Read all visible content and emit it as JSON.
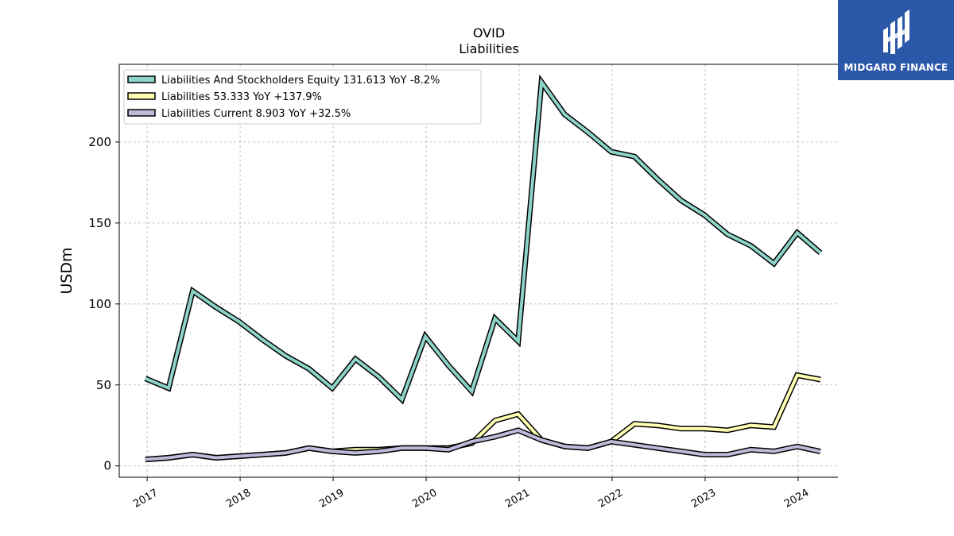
{
  "chart_data": {
    "type": "line",
    "title": "OVID",
    "subtitle": "Liabilities",
    "ylabel": "USDm",
    "ylim": [
      -7,
      248
    ],
    "xlim": [
      2016.7,
      2024.65
    ],
    "yticks": [
      0,
      50,
      100,
      150,
      200
    ],
    "xticks": [
      {
        "value": 2017,
        "label": "2017"
      },
      {
        "value": 2018,
        "label": "2018"
      },
      {
        "value": 2019,
        "label": "2019"
      },
      {
        "value": 2020,
        "label": "2020"
      },
      {
        "value": 2021,
        "label": "2021"
      },
      {
        "value": 2022,
        "label": "2022"
      },
      {
        "value": 2023,
        "label": "2023"
      },
      {
        "value": 2024,
        "label": "2024"
      }
    ],
    "grid": true,
    "legend_position": "top-left",
    "x": [
      2016.98,
      2017.23,
      2017.49,
      2017.74,
      2017.99,
      2018.24,
      2018.49,
      2018.74,
      2018.99,
      2019.24,
      2019.49,
      2019.74,
      2019.99,
      2020.24,
      2020.49,
      2020.74,
      2020.99,
      2021.24,
      2021.49,
      2021.74,
      2021.99,
      2022.24,
      2022.49,
      2022.74,
      2022.99,
      2023.24,
      2023.49,
      2023.74,
      2023.99,
      2024.24
    ],
    "series": [
      {
        "name": "Liabilities And Stockholders Equity  131.613 YoY -8.2%",
        "color": "#8dd3c7",
        "values": [
          54,
          48,
          108,
          98,
          89,
          78,
          68,
          60,
          48,
          66,
          55,
          41,
          80,
          62,
          46,
          91,
          77,
          237,
          217,
          206,
          194,
          191,
          177,
          164,
          155,
          143,
          136,
          125,
          144,
          131.6
        ]
      },
      {
        "name": "Liabilities  53.333 YoY +137.9%",
        "color": "#ffffb3",
        "values": [
          4,
          5,
          7,
          5,
          6,
          7,
          8,
          11,
          9,
          10,
          10,
          11,
          11,
          11,
          14,
          28,
          32,
          16,
          12,
          11,
          15,
          26,
          25,
          23,
          23,
          22,
          25,
          24,
          56,
          53.3
        ]
      },
      {
        "name": "Liabilities Current  8.903 YoY +32.5%",
        "color": "#bebada",
        "values": [
          4,
          5,
          7,
          5,
          6,
          7,
          8,
          11,
          9,
          8,
          9,
          11,
          11,
          10,
          15,
          18,
          22,
          16,
          12,
          11,
          15,
          13,
          11,
          9,
          7,
          7,
          10,
          9,
          12,
          8.9
        ]
      }
    ]
  },
  "logo": {
    "brand_text": "MIDGARD FINANCE"
  }
}
